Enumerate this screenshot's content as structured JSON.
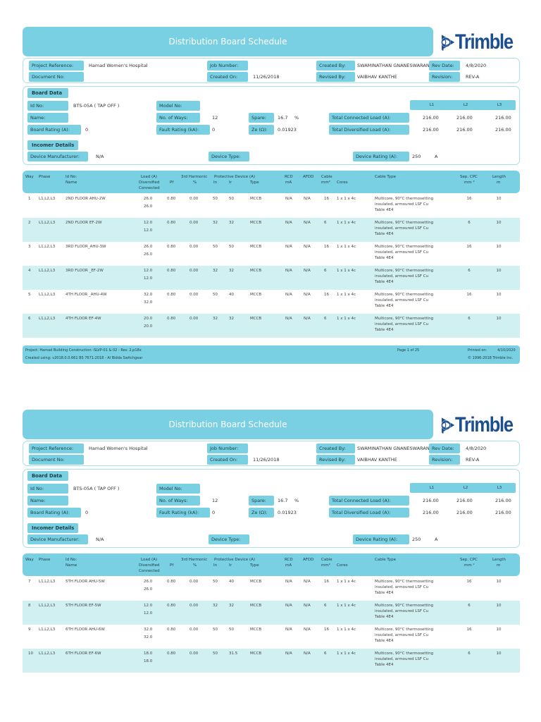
{
  "header": {
    "title": "Distribution Board Schedule",
    "logo": "Trimble",
    "logo_icon": "trimble-globe-icon"
  },
  "project_info": {
    "project_reference_label": "Project Reference:",
    "project_reference": "Hamad Women's Hospital",
    "document_no_label": "Document No:",
    "document_no": "",
    "job_number_label": "Job Number:",
    "job_number": "",
    "created_on_label": "Created On:",
    "created_on": "11/26/2018",
    "created_by_label": "Created By:",
    "created_by": "SWAMINATHAN GNANESWARAN",
    "revised_by_label": "Revised By:",
    "revised_by": "VAIBHAV KANTHE",
    "rev_date_label": "Rev Date:",
    "rev_date": "4/8/2020",
    "revision_label": "Revision:",
    "revision": "REV-A"
  },
  "board_data": {
    "section_title": "Board Data",
    "id_no_label": "Id No:",
    "id_no": "BTS-05A ( TAP OFF )",
    "name_label": "Name:",
    "name": "",
    "board_rating_label": "Board Rating (A):",
    "board_rating": "0",
    "model_no_label": "Model No:",
    "model_no": "",
    "no_of_ways_label": "No. of Ways:",
    "no_of_ways": "12",
    "fault_rating_label": "Fault Rating (kA):",
    "fault_rating": "0",
    "spare_label": "Spare:",
    "spare": "16.7",
    "spare_unit": "%",
    "ze_label": "Ze (Ω):",
    "ze": "0.01923",
    "phase_headers": [
      "L1",
      "L2",
      "L3"
    ],
    "total_connected_label": "Total Connected Load (A):",
    "total_connected": [
      "216.00",
      "216.00",
      "216.00"
    ],
    "total_diversified_label": "Total Diversified Load (A):",
    "total_diversified": [
      "216.00",
      "216.00",
      "216.00"
    ]
  },
  "incomer": {
    "section_title": "Incomer Details",
    "device_manufacturer_label": "Device Manufacturer:",
    "device_manufacturer": "N/A",
    "device_type_label": "Device Type:",
    "device_type": "",
    "device_rating_label": "Device Rating (A):",
    "device_rating": "250",
    "device_rating_unit": "A"
  },
  "table_headers": {
    "way": "Way",
    "phase": "Phase",
    "id_no": "Id No:",
    "name": "Name",
    "load": "Load (A)",
    "diversified": "Diversified",
    "connected": "Connected",
    "pf": "Pf",
    "harmonic": "3rd Harmonic",
    "harmonic_unit": "%",
    "protective": "Protective Device (A)",
    "in": "In",
    "ir": "Ir",
    "type": "Type",
    "rcd": "RCD",
    "rcd_unit": "mA",
    "afdd": "AFDD",
    "cable": "Cable",
    "cable_unit": "mm²",
    "cores": "Cores",
    "cable_type": "Cable Type",
    "sep_cpc": "Sep. CPC",
    "sep_cpc_unit": "mm ²",
    "length": "Length",
    "length_unit": "m"
  },
  "pages": [
    {
      "rows": [
        {
          "way": "1",
          "phase": "L1,L2,L3",
          "name": "2ND FLOOR  AHU-2W",
          "diversified": "26.0",
          "connected": "26.0",
          "pf": "0.80",
          "harmonic": "0.00",
          "in": "50",
          "ir": "50",
          "type": "MCCB",
          "rcd": "N/A",
          "afdd": "N/A",
          "cable": "16",
          "cores": "1 x 1 x 4c",
          "cable_type_1": "Multicore, 90°C thermosetting",
          "cable_type_2": "insulated, armoured LSF Cu",
          "cable_type_3": "Table 4E4",
          "sep_cpc": "16",
          "length": "10"
        },
        {
          "way": "2",
          "phase": "L1,L2,L3",
          "name": "2ND FLOOR  EF-2W",
          "diversified": "12.0",
          "connected": "12.0",
          "pf": "0.80",
          "harmonic": "0.00",
          "in": "32",
          "ir": "32",
          "type": "MCCB",
          "rcd": "N/A",
          "afdd": "N/A",
          "cable": "6",
          "cores": "1 x 1 x 4c",
          "cable_type_1": "Multicore, 90°C thermosetting",
          "cable_type_2": "insulated, armoured LSF Cu",
          "cable_type_3": "Table 4E4",
          "sep_cpc": "6",
          "length": "10"
        },
        {
          "way": "3",
          "phase": "L1,L2,L3",
          "name": "3RD FLOOR_AHU-3W",
          "diversified": "26.0",
          "connected": "26.0",
          "pf": "0.80",
          "harmonic": "0.00",
          "in": "50",
          "ir": "50",
          "type": "MCCB",
          "rcd": "N/A",
          "afdd": "N/A",
          "cable": "16",
          "cores": "1 x 1 x 4c",
          "cable_type_1": "Multicore, 90°C thermosetting",
          "cable_type_2": "insulated, armoured LSF Cu",
          "cable_type_3": "Table 4E4",
          "sep_cpc": "16",
          "length": "10"
        },
        {
          "way": "4",
          "phase": "L1,L2,L3",
          "name": "3RD FLOOR _EF-2W",
          "diversified": "12.0",
          "connected": "12.0",
          "pf": "0.80",
          "harmonic": "0.00",
          "in": "32",
          "ir": "32",
          "type": "MCCB",
          "rcd": "N/A",
          "afdd": "N/A",
          "cable": "6",
          "cores": "1 x 1 x 4c",
          "cable_type_1": "Multicore, 90°C thermosetting",
          "cable_type_2": "insulated, armoured LSF Cu",
          "cable_type_3": "Table 4E4",
          "sep_cpc": "6",
          "length": "10"
        },
        {
          "way": "5",
          "phase": "L1,L2,L3",
          "name": "4TH FLOOR _AHU-4W",
          "diversified": "32.0",
          "connected": "32.0",
          "pf": "0.80",
          "harmonic": "0.00",
          "in": "50",
          "ir": "40",
          "type": "MCCB",
          "rcd": "N/A",
          "afdd": "N/A",
          "cable": "16",
          "cores": "1 x 1 x 4c",
          "cable_type_1": "Multicore, 90°C thermosetting",
          "cable_type_2": "insulated, armoured LSF Cu",
          "cable_type_3": "Table 4E4",
          "sep_cpc": "16",
          "length": "10"
        },
        {
          "way": "6",
          "phase": "L1,L2,L3",
          "name": "4TH FLOOR EF-4W",
          "diversified": "20.0",
          "connected": "20.0",
          "pf": "0.80",
          "harmonic": "0.00",
          "in": "32",
          "ir": "32",
          "type": "MCCB",
          "rcd": "N/A",
          "afdd": "N/A",
          "cable": "6",
          "cores": "1 x 1 x 4c",
          "cable_type_1": "Multicore, 90°C thermosetting",
          "cable_type_2": "insulated, armoured LSF Cu",
          "cable_type_3": "Table 4E4",
          "sep_cpc": "6",
          "length": "10"
        }
      ],
      "footer": {
        "project": "Project:     Hamad Building Construction -SLVP-01 & 02 - Rev. 2.p18x",
        "created_using": "Created using: v2018.0.0.661 BS 7671:2018 - Al Bidda Switchgear",
        "page": "Page 1 of 25",
        "printed_on_label": "Printed on:",
        "printed_on": "4/10/2020",
        "copyright": "© 1996-2018 Trimble Inc."
      }
    },
    {
      "rows": [
        {
          "way": "7",
          "phase": "L1,L2,L3",
          "name": "5TH FLOOR AHU-5W",
          "diversified": "26.0",
          "connected": "26.0",
          "pf": "0.80",
          "harmonic": "0.00",
          "in": "50",
          "ir": "40",
          "type": "MCCB",
          "rcd": "N/A",
          "afdd": "N/A",
          "cable": "16",
          "cores": "1 x 1 x 4c",
          "cable_type_1": "Multicore, 90°C thermosetting",
          "cable_type_2": "insulated, armoured LSF Cu",
          "cable_type_3": "Table 4E4",
          "sep_cpc": "16",
          "length": "10"
        },
        {
          "way": "8",
          "phase": "L1,L2,L3",
          "name": "5TH FLOOR EF-5W",
          "diversified": "12.0",
          "connected": "12.0",
          "pf": "0.80",
          "harmonic": "0.00",
          "in": "32",
          "ir": "32",
          "type": "MCCB",
          "rcd": "N/A",
          "afdd": "N/A",
          "cable": "6",
          "cores": "1 x 1 x 4c",
          "cable_type_1": "Multicore, 90°C thermosetting",
          "cable_type_2": "insulated, armoured LSF Cu",
          "cable_type_3": "Table 4E4",
          "sep_cpc": "6",
          "length": "10"
        },
        {
          "way": "9",
          "phase": "L1,L2,L3",
          "name": "6TH FLOOR AHU-6W",
          "diversified": "32.0",
          "connected": "32.0",
          "pf": "0.80",
          "harmonic": "0.00",
          "in": "50",
          "ir": "50",
          "type": "MCCB",
          "rcd": "N/A",
          "afdd": "N/A",
          "cable": "16",
          "cores": "1 x 1 x 4c",
          "cable_type_1": "Multicore, 90°C thermosetting",
          "cable_type_2": "insulated, armoured LSF Cu",
          "cable_type_3": "Table 4E4",
          "sep_cpc": "16",
          "length": "10"
        },
        {
          "way": "10",
          "phase": "L1,L2,L3",
          "name": "6TH FLOOR EF-6W",
          "diversified": "18.0",
          "connected": "18.0",
          "pf": "0.80",
          "harmonic": "0.00",
          "in": "50",
          "ir": "31.5",
          "type": "MCCB",
          "rcd": "N/A",
          "afdd": "N/A",
          "cable": "6",
          "cores": "1 x 1 x 4c",
          "cable_type_1": "Multicore, 90°C thermosetting",
          "cable_type_2": "insulated, armoured LSF Cu",
          "cable_type_3": "Table 4E4",
          "sep_cpc": "6",
          "length": "10"
        }
      ]
    }
  ]
}
